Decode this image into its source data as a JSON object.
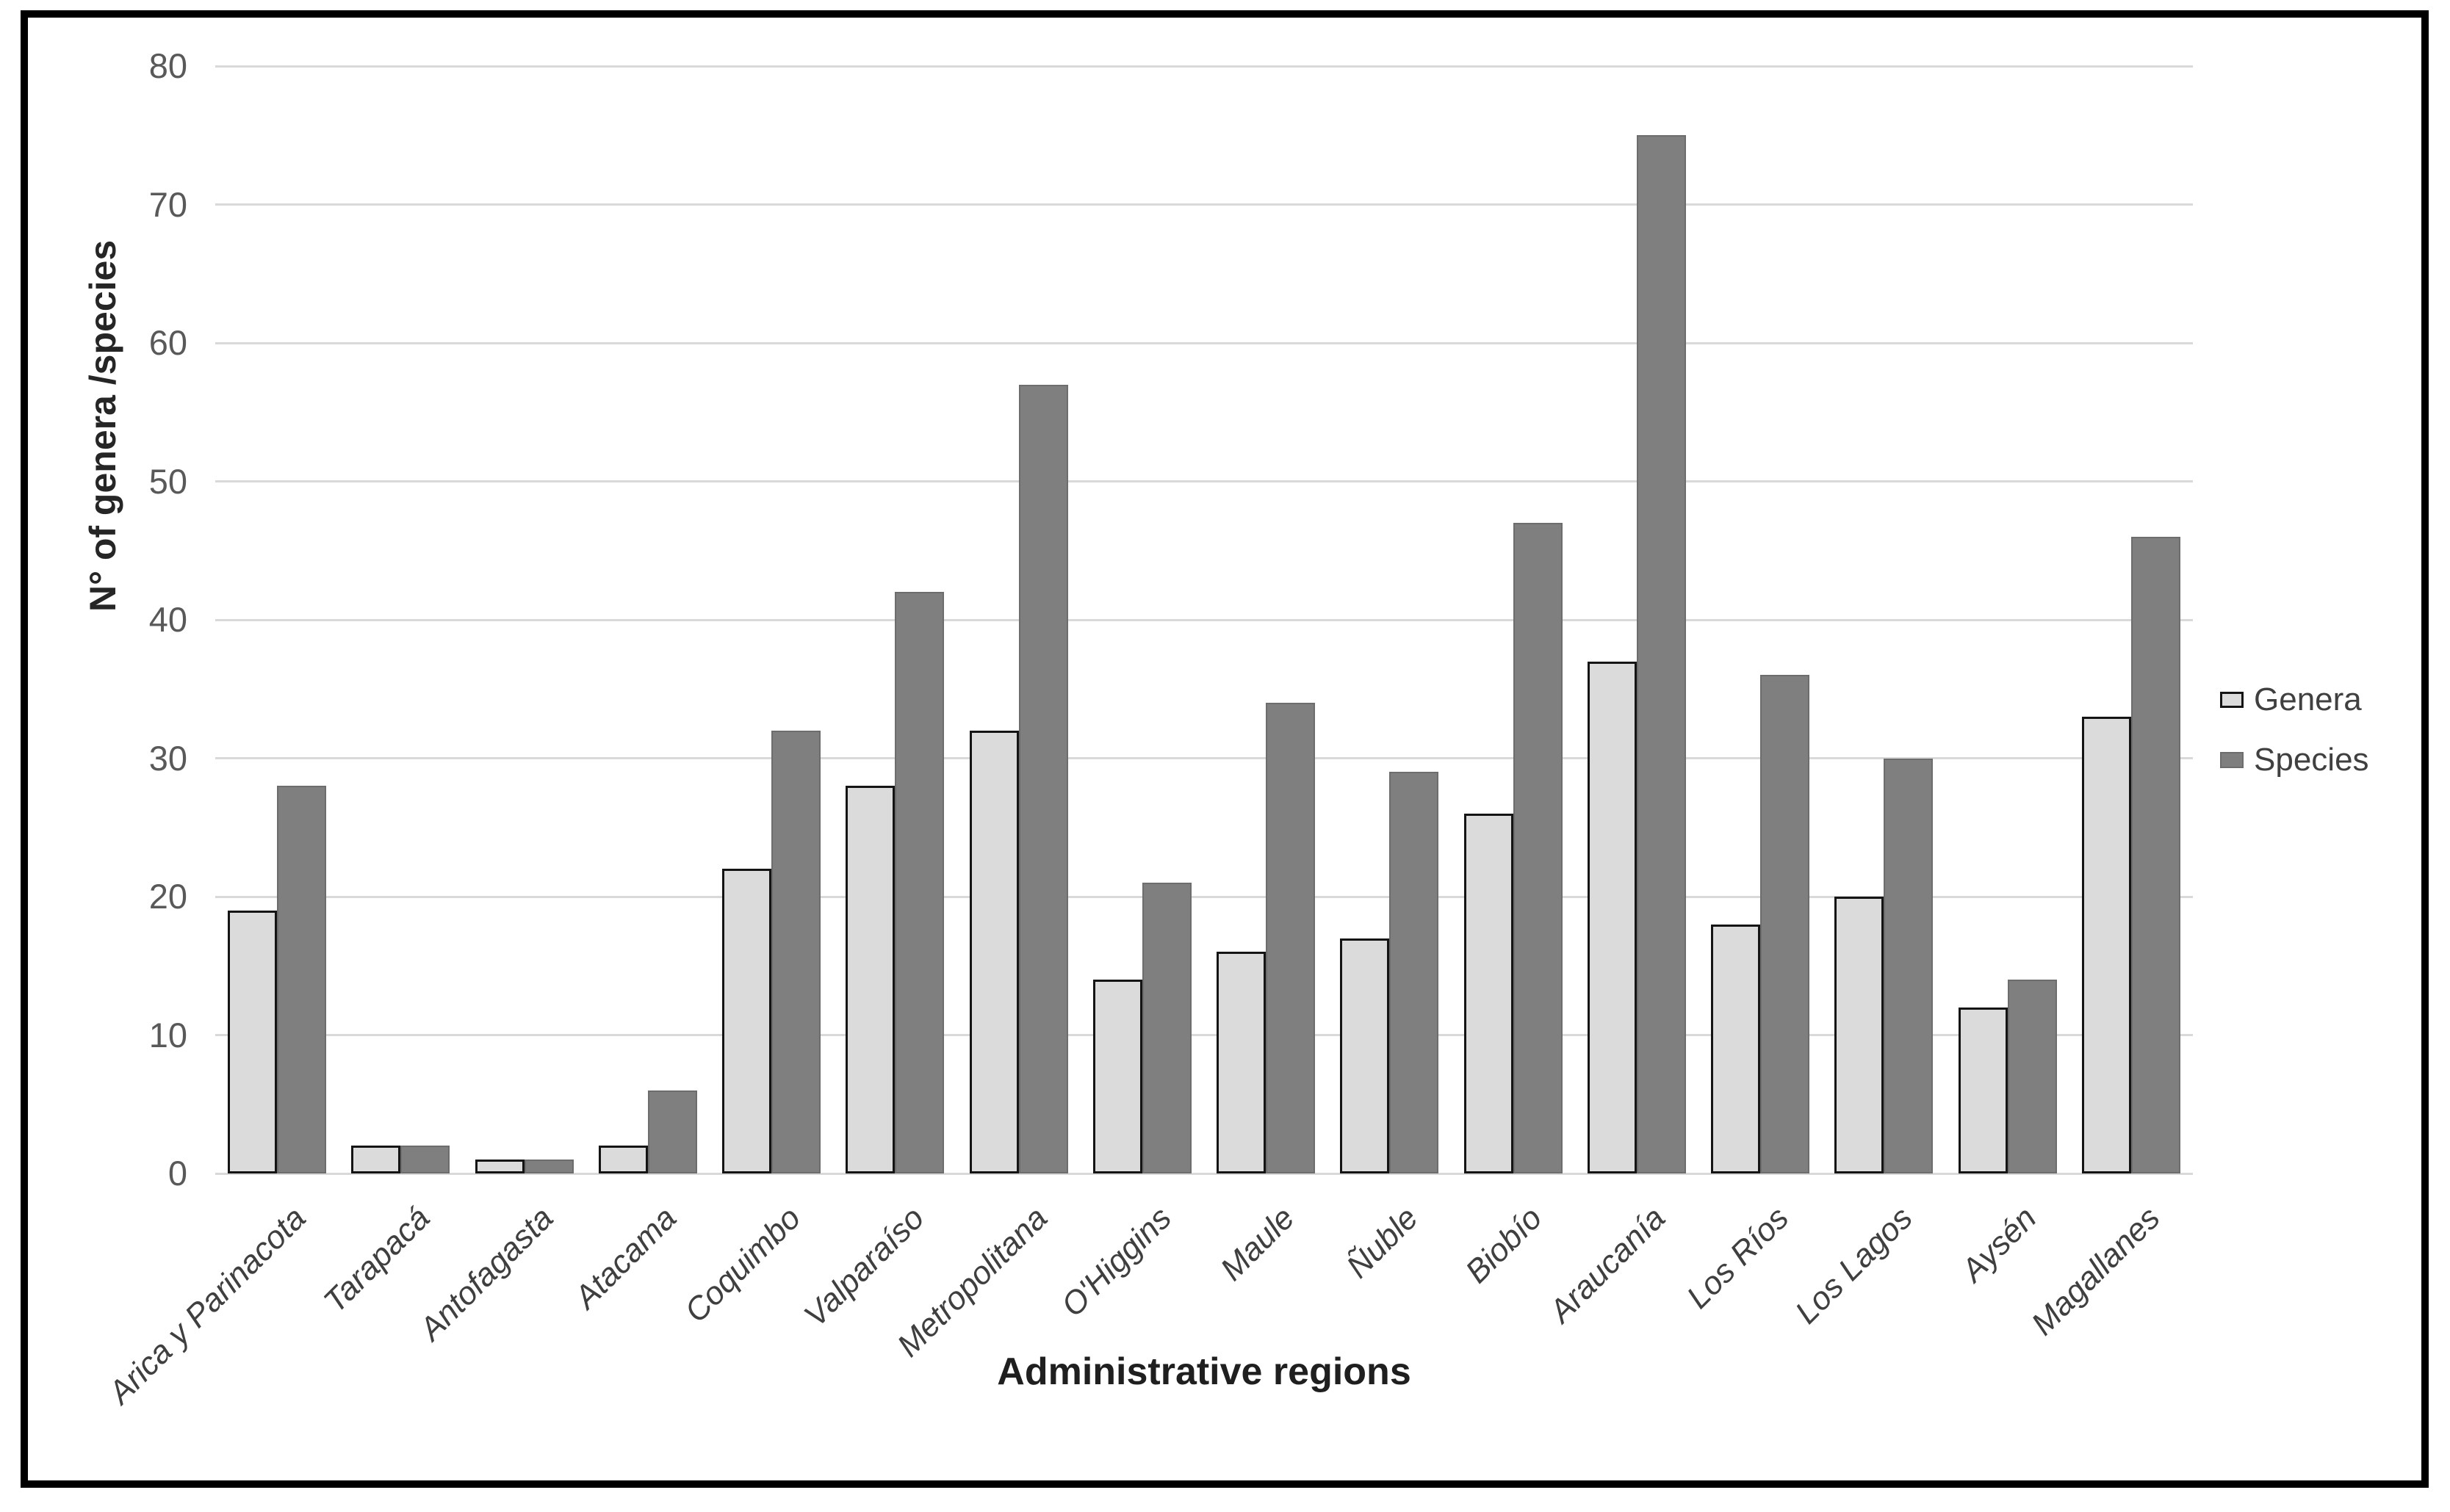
{
  "chart_data": {
    "type": "bar",
    "title": "",
    "categories": [
      "Arica y Parinacota",
      "Tarapacá",
      "Antofagasta",
      "Atacama",
      "Coquimbo",
      "Valparaíso",
      "Metropolitana",
      "O'Higgins",
      "Maule",
      "Ñuble",
      "Biobío",
      "Araucanía",
      "Los Ríos",
      "Los Lagos",
      "Aysén",
      "Magallanes"
    ],
    "series": [
      {
        "name": "Genera",
        "values": [
          19,
          2,
          1,
          2,
          22,
          28,
          32,
          14,
          16,
          17,
          26,
          37,
          18,
          20,
          12,
          33
        ]
      },
      {
        "name": "Species",
        "values": [
          28,
          2,
          1,
          6,
          32,
          42,
          57,
          21,
          34,
          29,
          47,
          75,
          36,
          30,
          14,
          46
        ]
      }
    ],
    "xlabel": "Administrative regions",
    "ylabel": "N° of genera /species",
    "ylim": [
      0,
      80
    ],
    "ytick_step": 10,
    "grid": "horizontal",
    "legend_position": "right"
  },
  "y_axis": {
    "title": "N° of genera /species",
    "ticks": [
      "0",
      "10",
      "20",
      "30",
      "40",
      "50",
      "60",
      "70",
      "80"
    ]
  },
  "x_axis": {
    "title": "Administrative regions"
  },
  "legend": {
    "items": [
      {
        "label": "Genera",
        "swatch": "light"
      },
      {
        "label": "Species",
        "swatch": "dark"
      }
    ]
  },
  "colors": {
    "genera_fill": "#dbdbdb",
    "genera_border": "#141414",
    "species_fill": "#7f7f7f",
    "species_border": "#6d6d6d",
    "gridline": "#d9d9d9",
    "tick_text": "#595959",
    "label_text": "#3f3f3f",
    "frame": "#000000"
  }
}
